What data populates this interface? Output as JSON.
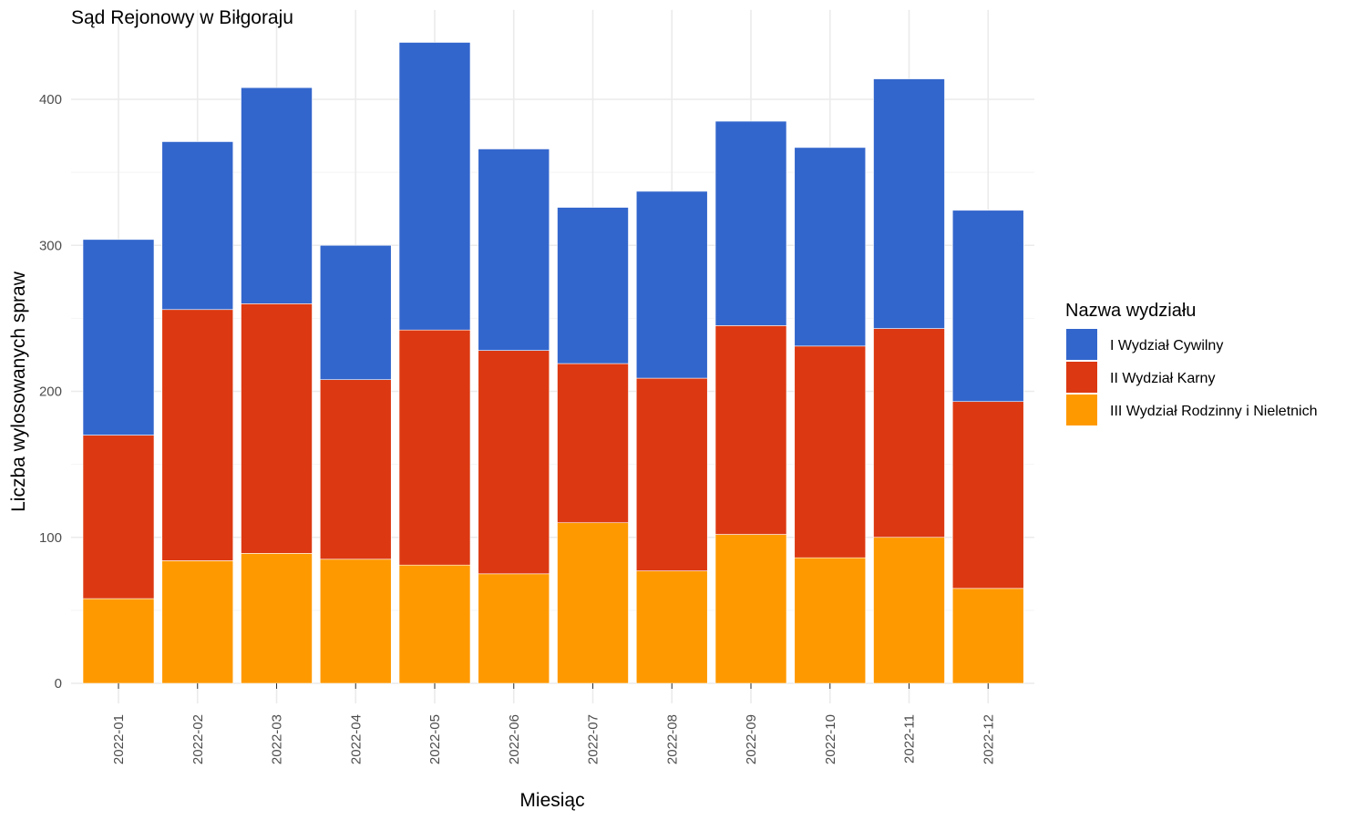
{
  "chart_data": {
    "type": "bar",
    "stacked": true,
    "title": "Sąd Rejonowy w Biłgoraju",
    "xlabel": "Miesiąc",
    "ylabel": "Liczba wylosowanych spraw",
    "ylim": [
      0,
      440
    ],
    "yticks": [
      "0",
      "100",
      "200",
      "300",
      "400"
    ],
    "grid": true,
    "legend_title": "Nazwa wydziału",
    "legend_position": "right",
    "categories": [
      "2022-01",
      "2022-02",
      "2022-03",
      "2022-04",
      "2022-05",
      "2022-06",
      "2022-07",
      "2022-08",
      "2022-09",
      "2022-10",
      "2022-11",
      "2022-12"
    ],
    "series": [
      {
        "name": "III Wydział Rodzinny i Nieletnich",
        "color": "#FF9900",
        "values": [
          58,
          84,
          89,
          85,
          81,
          75,
          110,
          77,
          102,
          86,
          100,
          65
        ]
      },
      {
        "name": "II Wydział Karny",
        "color": "#DC3912",
        "values": [
          112,
          172,
          171,
          123,
          161,
          153,
          109,
          132,
          143,
          145,
          143,
          128
        ]
      },
      {
        "name": "I Wydział Cywilny",
        "color": "#3366CC",
        "values": [
          134,
          115,
          148,
          92,
          197,
          138,
          107,
          128,
          140,
          136,
          171,
          131
        ]
      }
    ],
    "legend_order": [
      "I Wydział Cywilny",
      "II Wydział Karny",
      "III Wydział Rodzinny i Nieletnich"
    ]
  }
}
